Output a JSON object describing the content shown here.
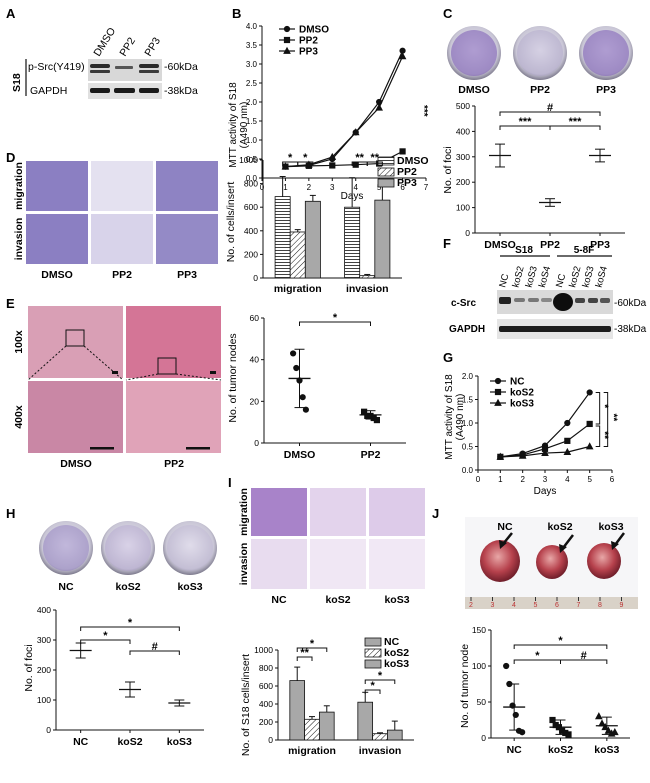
{
  "panels": {
    "A": "A",
    "B": "B",
    "C": "C",
    "D": "D",
    "E": "E",
    "F": "F",
    "G": "G",
    "H": "H",
    "I": "I",
    "J": "J"
  },
  "panelA": {
    "lanes": [
      "DMSO",
      "PP2",
      "PP3"
    ],
    "cell_line": "S18",
    "rows": [
      {
        "label": "p-Src(Y419)",
        "kda": "-60kDa"
      },
      {
        "label": "GAPDH",
        "kda": "-38kDa"
      }
    ]
  },
  "panelB": {
    "ylabel_line1": "MTT activity of S18",
    "ylabel_line2": "(A490 nm)",
    "xlabel": "Days",
    "significance": "***",
    "legend": [
      "DMSO",
      "PP2",
      "PP3"
    ]
  },
  "panelC": {
    "plates": [
      "DMSO",
      "PP2",
      "PP3"
    ],
    "ylabel": "No. of foci",
    "sig": [
      "#",
      "***",
      "***"
    ]
  },
  "panelD": {
    "row_labels": [
      "migration",
      "invasion"
    ],
    "col_labels": [
      "DMSO",
      "PP2",
      "PP3"
    ],
    "ylabel": "No. of cells/insert",
    "legend": [
      "DMSO",
      "PP2",
      "PP3"
    ],
    "sig": [
      "*",
      "*",
      "**",
      "**"
    ]
  },
  "panelE": {
    "row_labels": [
      "100x",
      "400x"
    ],
    "col_labels": [
      "DMSO",
      "PP2"
    ],
    "ylabel": "No. of tumor nodes",
    "sig": "*"
  },
  "panelF": {
    "groups": [
      "S18",
      "5-8F"
    ],
    "lanes": [
      "NC",
      "koS2",
      "koS3",
      "koS4",
      "NC",
      "koS2",
      "koS3",
      "koS4"
    ],
    "rows": [
      {
        "label": "c-Src",
        "kda": "-60kDa"
      },
      {
        "label": "GAPDH",
        "kda": "-38kDa"
      }
    ]
  },
  "panelG": {
    "ylabel_line1": "MTT activity of S18",
    "ylabel_line2": "(A490 nm)",
    "xlabel": "Days",
    "legend": [
      "NC",
      "koS2",
      "koS3"
    ],
    "sig": [
      "*",
      "**",
      "**"
    ]
  },
  "panelH": {
    "plates": [
      "NC",
      "koS2",
      "koS3"
    ],
    "ylabel": "No. of foci",
    "sig": [
      "*",
      "*",
      "#"
    ]
  },
  "panelI": {
    "row_labels": [
      "migration",
      "invasion"
    ],
    "col_labels": [
      "NC",
      "koS2",
      "koS3"
    ],
    "ylabel": "No. of S18 cells/insert",
    "legend": [
      "NC",
      "koS2",
      "koS3"
    ],
    "sig": [
      "**",
      "*",
      "*",
      "*"
    ]
  },
  "panelJ": {
    "tumors": [
      "NC",
      "koS2",
      "koS3"
    ],
    "ruler_ticks": [
      "2",
      "3",
      "4",
      "5",
      "6",
      "7",
      "8",
      "9"
    ],
    "ylabel": "No. of tumor node",
    "sig": [
      "*",
      "*",
      "#"
    ]
  },
  "colors": {
    "stain": "#6a3fa6",
    "he_pink": "#d77fa0",
    "tissue": "#b64a5c",
    "ink": "#111111"
  },
  "chart_data": [
    {
      "id": "B",
      "type": "line",
      "xlabel": "Days",
      "ylabel": "MTT activity of S18 (A490 nm)",
      "x": [
        1,
        2,
        3,
        4,
        5,
        6
      ],
      "xlim": [
        0,
        7
      ],
      "ylim": [
        0,
        4.0
      ],
      "yticks": [
        "0.0",
        "0.5",
        "1.0",
        "1.5",
        "2.0",
        "2.5",
        "3.0",
        "3.5",
        "4.0"
      ],
      "xticks": [
        "0",
        "1",
        "2",
        "3",
        "4",
        "5",
        "6",
        "7"
      ],
      "series": [
        {
          "name": "DMSO",
          "values": [
            0.3,
            0.33,
            0.5,
            1.2,
            2.0,
            3.35
          ],
          "marker": "circle"
        },
        {
          "name": "PP2",
          "values": [
            0.3,
            0.32,
            0.33,
            0.35,
            0.38,
            0.7
          ],
          "marker": "square"
        },
        {
          "name": "PP3",
          "values": [
            0.3,
            0.35,
            0.55,
            1.2,
            1.85,
            3.2
          ],
          "marker": "triangle"
        }
      ]
    },
    {
      "id": "C",
      "type": "scatter",
      "categories": [
        "DMSO",
        "PP2",
        "PP3"
      ],
      "ylabel": "No. of foci",
      "ylim": [
        0,
        500
      ],
      "yticks": [
        "0",
        "100",
        "200",
        "300",
        "400",
        "500"
      ],
      "means": [
        305,
        120,
        305
      ],
      "errors": [
        45,
        15,
        25
      ]
    },
    {
      "id": "D",
      "type": "bar",
      "categories": [
        "migration",
        "invasion"
      ],
      "ylabel": "No. of cells/insert",
      "ylim": [
        0,
        1000
      ],
      "yticks": [
        "0",
        "200",
        "400",
        "600",
        "800",
        "1000"
      ],
      "series": [
        {
          "name": "DMSO",
          "values": [
            690,
            600
          ],
          "errors": [
            170,
            250
          ]
        },
        {
          "name": "PP2",
          "values": [
            390,
            20
          ],
          "errors": [
            20,
            10
          ]
        },
        {
          "name": "PP3",
          "values": [
            650,
            660
          ],
          "errors": [
            50,
            170
          ]
        }
      ]
    },
    {
      "id": "E",
      "type": "scatter",
      "categories": [
        "DMSO",
        "PP2"
      ],
      "ylabel": "No. of tumor nodes",
      "ylim": [
        0,
        60
      ],
      "yticks": [
        "0",
        "20",
        "40",
        "60"
      ],
      "points": [
        [
          43,
          36,
          30,
          22,
          16
        ],
        [
          15,
          13,
          13,
          12,
          11
        ]
      ],
      "means": [
        31,
        13.5
      ],
      "errors": [
        14,
        2
      ]
    },
    {
      "id": "G",
      "type": "line",
      "xlabel": "Days",
      "ylabel": "MTT activity of S18 (A490 nm)",
      "x": [
        1,
        2,
        3,
        4,
        5
      ],
      "xlim": [
        0,
        6
      ],
      "ylim": [
        0,
        2.0
      ],
      "yticks": [
        "0.0",
        "0.5",
        "1.0",
        "1.5",
        "2.0"
      ],
      "xticks": [
        "0",
        "1",
        "2",
        "3",
        "4",
        "5",
        "6"
      ],
      "series": [
        {
          "name": "NC",
          "values": [
            0.28,
            0.35,
            0.52,
            1.0,
            1.65
          ],
          "marker": "circle"
        },
        {
          "name": "koS2",
          "values": [
            0.28,
            0.32,
            0.45,
            0.62,
            0.98
          ],
          "marker": "square"
        },
        {
          "name": "koS3",
          "values": [
            0.28,
            0.3,
            0.36,
            0.38,
            0.5
          ],
          "marker": "triangle"
        }
      ]
    },
    {
      "id": "H",
      "type": "scatter",
      "categories": [
        "NC",
        "koS2",
        "koS3"
      ],
      "ylabel": "No. of foci",
      "ylim": [
        0,
        400
      ],
      "yticks": [
        "0",
        "100",
        "200",
        "300",
        "400"
      ],
      "means": [
        265,
        135,
        90
      ],
      "errors": [
        25,
        25,
        10
      ]
    },
    {
      "id": "I",
      "type": "bar",
      "categories": [
        "migration",
        "invasion"
      ],
      "ylabel": "No. of S18 cells/insert",
      "ylim": [
        0,
        1000
      ],
      "yticks": [
        "0",
        "200",
        "400",
        "600",
        "800",
        "1000"
      ],
      "series": [
        {
          "name": "NC",
          "values": [
            660,
            420
          ],
          "errors": [
            150,
            110
          ]
        },
        {
          "name": "koS2",
          "values": [
            230,
            70
          ],
          "errors": [
            30,
            10
          ]
        },
        {
          "name": "koS3",
          "values": [
            310,
            110
          ],
          "errors": [
            70,
            100
          ]
        }
      ]
    },
    {
      "id": "J",
      "type": "scatter",
      "categories": [
        "NC",
        "koS2",
        "koS3"
      ],
      "ylabel": "No. of tumor node",
      "ylim": [
        0,
        150
      ],
      "yticks": [
        "0",
        "50",
        "100",
        "150"
      ],
      "points": [
        [
          100,
          75,
          45,
          32,
          10,
          8
        ],
        [
          25,
          18,
          15,
          10,
          7,
          5
        ],
        [
          30,
          20,
          15,
          10,
          6,
          8
        ]
      ],
      "means": [
        43,
        15,
        17
      ],
      "errors": [
        32,
        10,
        12
      ]
    }
  ]
}
